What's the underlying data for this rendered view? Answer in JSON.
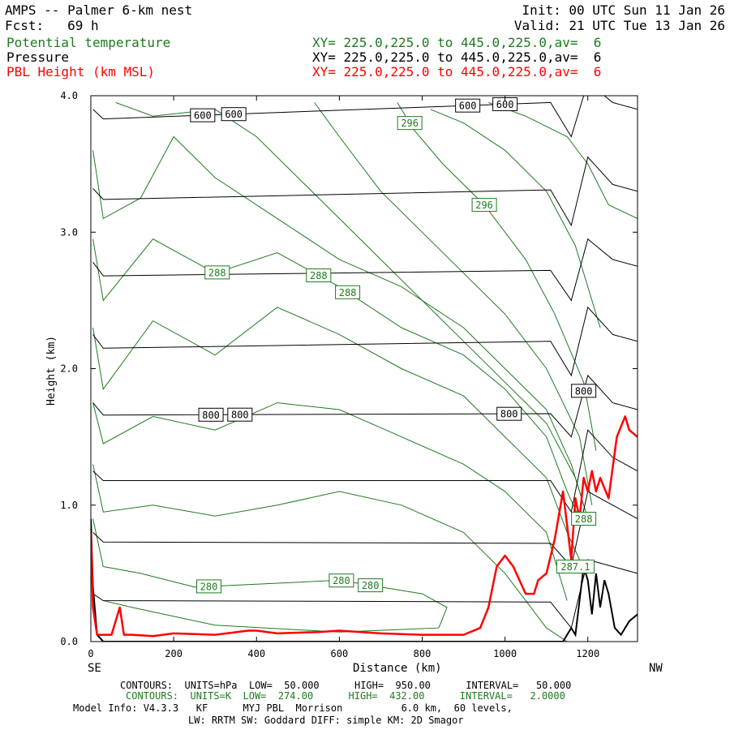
{
  "header": {
    "model_line": "AMPS -- Palmer 6-km nest",
    "fcst_line": "Fcst:   69 h",
    "init_line": "Init: 00 UTC Sun 11 Jan 26",
    "valid_line": "Valid: 21 UTC Tue 13 Jan 26",
    "fields": [
      {
        "name": "Potential temperature",
        "xy": "XY= 225.0,225.0 to 445.0,225.0,av=  6",
        "color": "#1e7a1e"
      },
      {
        "name": "Pressure",
        "xy": "XY= 225.0,225.0 to 445.0,225.0,av=  6",
        "color": "#000000"
      },
      {
        "name": "PBL Height (km MSL)",
        "xy": "XY= 225.0,225.0 to 445.0,225.0,av=  6",
        "color": "#ff0000"
      }
    ]
  },
  "footer": {
    "line1": "CONTOURS:  UNITS=hPa  LOW=  50.000      HIGH=  950.00      INTERVAL=   50.000",
    "line2": "CONTOURS:  UNITS=K  LOW=  274.00      HIGH=  432.00      INTERVAL=   2.0000",
    "line3": "Model Info: V4.3.3   KF      MYJ PBL  Morrison          6.0 km,  60 levels,",
    "line4": "LW: RRTM SW: Goddard DIFF: simple KM: 2D Smagor"
  },
  "chart_data": {
    "type": "line",
    "title": "AMPS -- Palmer 6-km nest",
    "xlabel": "Distance (km)",
    "ylabel": "Height (km)",
    "xlim": [
      0,
      1320
    ],
    "ylim": [
      0,
      4.0
    ],
    "xticks": [
      0,
      200,
      400,
      600,
      800,
      1000,
      1200
    ],
    "yticks": [
      0.0,
      1.0,
      2.0,
      3.0,
      4.0
    ],
    "xtick_labels": [
      "0",
      "200",
      "400",
      "600",
      "800",
      "1000",
      "1200"
    ],
    "ytick_labels": [
      "0.0",
      "1.0",
      "2.0",
      "3.0",
      "4.0"
    ],
    "left_end_label": "SE",
    "right_end_label": "NW",
    "terrain": {
      "name": "Terrain",
      "x": [
        0,
        5,
        15,
        30,
        60,
        1100,
        1140,
        1160,
        1170,
        1180,
        1190,
        1200,
        1210,
        1220,
        1230,
        1240,
        1250,
        1265,
        1280,
        1300,
        1320
      ],
      "y": [
        0.9,
        0.4,
        0.05,
        0.0,
        0.0,
        0.0,
        0.0,
        0.1,
        0.05,
        0.3,
        0.55,
        0.45,
        0.2,
        0.5,
        0.25,
        0.45,
        0.35,
        0.1,
        0.05,
        0.15,
        0.2
      ]
    },
    "pressure_contours": [
      {
        "name": "950 hPa",
        "x": [
          5,
          30,
          1110,
          1160,
          1200,
          1260,
          1320
        ],
        "y": [
          0.35,
          0.3,
          0.29,
          0.1,
          0.6,
          0.55,
          0.5
        ]
      },
      {
        "name": "900 hPa",
        "x": [
          5,
          30,
          1110,
          1160,
          1200,
          1260,
          1320
        ],
        "y": [
          0.8,
          0.73,
          0.72,
          0.55,
          1.1,
          1.0,
          0.9
        ]
      },
      {
        "name": "850 hPa",
        "x": [
          5,
          30,
          1110,
          1160,
          1200,
          1260,
          1320
        ],
        "y": [
          1.25,
          1.18,
          1.18,
          0.95,
          1.55,
          1.35,
          1.25
        ]
      },
      {
        "name": "800 hPa",
        "labels": [
          "800",
          "800",
          "800",
          "800"
        ],
        "label_x": [
          290,
          360,
          1010,
          1190
        ],
        "x": [
          5,
          30,
          1110,
          1160,
          1200,
          1260,
          1320
        ],
        "y": [
          1.75,
          1.66,
          1.67,
          1.5,
          1.95,
          1.75,
          1.7
        ]
      },
      {
        "name": "750 hPa",
        "x": [
          5,
          30,
          1110,
          1160,
          1200,
          1260,
          1320
        ],
        "y": [
          2.25,
          2.15,
          2.2,
          1.95,
          2.45,
          2.25,
          2.2
        ]
      },
      {
        "name": "700 hPa",
        "x": [
          5,
          30,
          1110,
          1160,
          1200,
          1260,
          1320
        ],
        "y": [
          2.78,
          2.68,
          2.72,
          2.5,
          2.95,
          2.8,
          2.75
        ]
      },
      {
        "name": "650 hPa",
        "x": [
          5,
          30,
          1110,
          1160,
          1200,
          1260,
          1320
        ],
        "y": [
          3.32,
          3.24,
          3.31,
          3.05,
          3.55,
          3.35,
          3.3
        ]
      },
      {
        "name": "600 hPa",
        "labels": [
          "600",
          "600",
          "600",
          "600"
        ],
        "label_x": [
          270,
          345,
          910,
          1000
        ],
        "x": [
          5,
          30,
          1110,
          1160,
          1200,
          1260,
          1320
        ],
        "y": [
          3.9,
          3.83,
          3.95,
          3.7,
          4.1,
          3.95,
          3.9
        ]
      }
    ],
    "theta_contours": [
      {
        "name": "280 K",
        "labels": [
          "280",
          "280",
          "280"
        ],
        "label_x": [
          285,
          605,
          675
        ],
        "x": [
          5,
          30,
          120,
          250,
          400,
          600,
          800,
          860,
          840,
          600,
          300,
          100,
          30
        ],
        "y": [
          0.9,
          0.55,
          0.5,
          0.4,
          0.42,
          0.45,
          0.35,
          0.25,
          0.1,
          0.07,
          0.12,
          0.25,
          0.3
        ]
      },
      {
        "name": "282 K",
        "x": [
          5,
          30,
          150,
          300,
          450,
          600,
          750,
          900,
          1000,
          1100,
          1150
        ],
        "y": [
          1.3,
          0.95,
          1.0,
          0.92,
          1.0,
          1.1,
          1.0,
          0.8,
          0.5,
          0.1,
          0.0
        ]
      },
      {
        "name": "284 K",
        "x": [
          5,
          30,
          150,
          300,
          450,
          600,
          750,
          900,
          1000,
          1100,
          1150
        ],
        "y": [
          1.75,
          1.45,
          1.65,
          1.55,
          1.75,
          1.7,
          1.5,
          1.3,
          1.1,
          0.8,
          0.3
        ]
      },
      {
        "name": "286 K",
        "x": [
          5,
          30,
          150,
          300,
          450,
          600,
          750,
          900,
          1000,
          1100,
          1150,
          1180
        ],
        "y": [
          2.3,
          1.85,
          2.35,
          2.1,
          2.45,
          2.25,
          2.0,
          1.8,
          1.5,
          1.2,
          0.8,
          0.6
        ]
      },
      {
        "name": "288 K",
        "labels": [
          "288",
          "288",
          "288",
          "288"
        ],
        "label_x": [
          305,
          550,
          620,
          1190
        ],
        "x": [
          5,
          30,
          150,
          300,
          450,
          600,
          750,
          900,
          1000,
          1100,
          1150,
          1180
        ],
        "y": [
          2.95,
          2.5,
          2.95,
          2.7,
          2.85,
          2.6,
          2.3,
          2.1,
          1.85,
          1.5,
          1.1,
          0.9
        ]
      },
      {
        "name": "290 K",
        "x": [
          5,
          30,
          120,
          200,
          300,
          450,
          600,
          750,
          900,
          1000,
          1100,
          1160,
          1190
        ],
        "y": [
          3.6,
          3.1,
          3.25,
          3.7,
          3.4,
          3.1,
          2.8,
          2.6,
          2.3,
          2.0,
          1.7,
          1.3,
          1.0
        ]
      },
      {
        "name": "292 K",
        "x": [
          60,
          150,
          300,
          400,
          500,
          600,
          700,
          800,
          900,
          1000,
          1100,
          1170,
          1200
        ],
        "y": [
          3.95,
          3.85,
          3.9,
          3.7,
          3.4,
          3.1,
          2.8,
          2.5,
          2.2,
          1.9,
          1.6,
          1.2,
          0.9
        ]
      },
      {
        "name": "294 K",
        "x": [
          540,
          600,
          700,
          800,
          900,
          1000,
          1100,
          1180,
          1210
        ],
        "y": [
          3.95,
          3.7,
          3.3,
          3.0,
          2.7,
          2.4,
          2.0,
          1.5,
          1.0
        ]
      },
      {
        "name": "296 K",
        "labels": [
          "296",
          "296"
        ],
        "label_x": [
          770,
          950
        ],
        "x": [
          740,
          780,
          850,
          950,
          1050,
          1120,
          1190,
          1220
        ],
        "y": [
          3.95,
          3.75,
          3.5,
          3.2,
          2.8,
          2.4,
          1.9,
          1.4
        ]
      },
      {
        "name": "298 K",
        "x": [
          820,
          900,
          1000,
          1100,
          1170,
          1230
        ],
        "y": [
          3.9,
          3.8,
          3.6,
          3.3,
          2.9,
          2.3
        ]
      },
      {
        "name": "300 K",
        "x": [
          960,
          1050,
          1150,
          1200,
          1250,
          1320
        ],
        "y": [
          3.95,
          3.85,
          3.7,
          3.5,
          3.2,
          3.1
        ]
      }
    ],
    "pbl_height": {
      "name": "PBL Height (km MSL)",
      "x": [
        0,
        5,
        15,
        30,
        50,
        60,
        70,
        80,
        100,
        150,
        200,
        300,
        380,
        400,
        450,
        550,
        600,
        700,
        800,
        900,
        940,
        960,
        980,
        1000,
        1020,
        1050,
        1070,
        1080,
        1100,
        1120,
        1140,
        1160,
        1170,
        1180,
        1190,
        1200,
        1210,
        1220,
        1230,
        1250,
        1270,
        1290,
        1300,
        1320
      ],
      "y": [
        0.8,
        0.25,
        0.05,
        0.05,
        0.05,
        0.15,
        0.25,
        0.05,
        0.05,
        0.04,
        0.06,
        0.05,
        0.08,
        0.08,
        0.06,
        0.07,
        0.08,
        0.06,
        0.05,
        0.05,
        0.1,
        0.25,
        0.55,
        0.63,
        0.55,
        0.35,
        0.35,
        0.45,
        0.5,
        0.75,
        1.1,
        0.6,
        1.05,
        0.9,
        1.2,
        1.1,
        1.25,
        1.1,
        1.2,
        1.05,
        1.5,
        1.65,
        1.55,
        1.5
      ]
    },
    "annotations": [
      {
        "text": "287.1",
        "x": 1170,
        "y": 0.55
      }
    ]
  }
}
